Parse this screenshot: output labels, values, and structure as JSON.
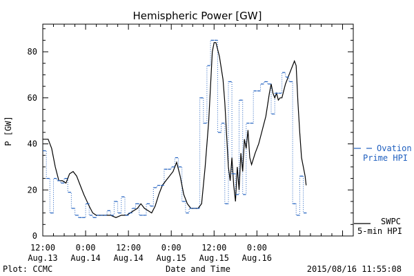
{
  "chart_data": {
    "type": "line",
    "title": "Hemispheric Power [GW]",
    "ylabel": "P [GW]",
    "xlabel": "Date and Time",
    "ylim": [
      0,
      92
    ],
    "y_ticks": [
      0,
      20,
      40,
      60,
      80
    ],
    "x_axis_unit": "hours since 2015/08/13 12:00",
    "xlim": [
      0,
      87
    ],
    "x_ticks": [
      {
        "x": 0,
        "line1": "12:00",
        "line2": "Aug.13"
      },
      {
        "x": 12,
        "line1": "0:00",
        "line2": "Aug.14"
      },
      {
        "x": 24,
        "line1": "12:00",
        "line2": "Aug.14"
      },
      {
        "x": 36,
        "line1": "0:00",
        "line2": "Aug.15"
      },
      {
        "x": 48,
        "line1": "12:00",
        "line2": "Aug.15"
      },
      {
        "x": 60,
        "line1": "0:00",
        "line2": "Aug.16"
      }
    ],
    "series": [
      {
        "name": "SWPC 5-min HPI",
        "color": "#000000",
        "style": "solid",
        "points": [
          [
            0,
            42
          ],
          [
            1.5,
            42
          ],
          [
            2.5,
            38
          ],
          [
            3.5,
            30
          ],
          [
            4.5,
            24
          ],
          [
            5.5,
            24
          ],
          [
            6.5,
            23
          ],
          [
            7.5,
            27
          ],
          [
            8.5,
            28
          ],
          [
            9.5,
            26
          ],
          [
            10.5,
            22
          ],
          [
            11.5,
            18
          ],
          [
            13,
            13
          ],
          [
            14,
            10
          ],
          [
            15,
            9
          ],
          [
            16,
            9
          ],
          [
            17.5,
            9
          ],
          [
            19,
            9
          ],
          [
            20.5,
            8
          ],
          [
            22,
            9
          ],
          [
            23.5,
            9
          ],
          [
            24.5,
            10
          ],
          [
            25.5,
            11
          ],
          [
            26.5,
            12
          ],
          [
            27.5,
            14
          ],
          [
            28.5,
            12
          ],
          [
            29.5,
            11
          ],
          [
            30.5,
            10
          ],
          [
            31.5,
            13
          ],
          [
            32.5,
            18
          ],
          [
            33.5,
            22
          ],
          [
            34.5,
            24
          ],
          [
            35.5,
            26
          ],
          [
            36.5,
            28
          ],
          [
            37.5,
            32
          ],
          [
            38.5,
            26
          ],
          [
            39.5,
            18
          ],
          [
            40.5,
            14
          ],
          [
            41.5,
            12
          ],
          [
            42.5,
            12
          ],
          [
            43.5,
            12
          ],
          [
            44.5,
            14
          ],
          [
            45.5,
            30
          ],
          [
            46.5,
            50
          ],
          [
            47,
            65
          ],
          [
            47.5,
            80
          ],
          [
            48,
            84
          ],
          [
            48.5,
            84
          ],
          [
            49.5,
            78
          ],
          [
            50.5,
            68
          ],
          [
            51,
            58
          ],
          [
            51.5,
            44
          ],
          [
            52,
            30
          ],
          [
            52.5,
            24
          ],
          [
            53,
            34
          ],
          [
            53.5,
            22
          ],
          [
            54,
            15
          ],
          [
            54.5,
            30
          ],
          [
            55,
            20
          ],
          [
            55.5,
            36
          ],
          [
            56,
            28
          ],
          [
            56.5,
            42
          ],
          [
            57,
            38
          ],
          [
            57.5,
            46
          ],
          [
            58,
            34
          ],
          [
            58.5,
            31
          ],
          [
            59.5,
            36
          ],
          [
            60.5,
            40
          ],
          [
            61.5,
            46
          ],
          [
            62.5,
            52
          ],
          [
            63.5,
            62
          ],
          [
            64,
            66
          ],
          [
            64.5,
            62
          ],
          [
            65,
            60
          ],
          [
            65.5,
            62
          ],
          [
            66,
            59
          ],
          [
            66.5,
            60
          ],
          [
            67,
            60
          ],
          [
            67.5,
            63
          ],
          [
            68,
            66
          ],
          [
            68.5,
            68
          ],
          [
            69,
            70
          ],
          [
            69.5,
            72
          ],
          [
            70,
            74
          ],
          [
            70.5,
            76
          ],
          [
            71,
            74
          ],
          [
            71.5,
            58
          ],
          [
            72,
            45
          ],
          [
            72.5,
            34
          ],
          [
            73,
            30
          ],
          [
            73.5,
            26
          ],
          [
            73.8,
            22
          ]
        ]
      },
      {
        "name": "Ovation Prime HPI",
        "color": "#1f5fbf",
        "style": "dotted-step",
        "points": [
          [
            0,
            37
          ],
          [
            1,
            25
          ],
          [
            2,
            10
          ],
          [
            3,
            25
          ],
          [
            4,
            24
          ],
          [
            5,
            23
          ],
          [
            6,
            25
          ],
          [
            7,
            19
          ],
          [
            8,
            12
          ],
          [
            9,
            9
          ],
          [
            10,
            8
          ],
          [
            11,
            8
          ],
          [
            12,
            14
          ],
          [
            13,
            9
          ],
          [
            14,
            8
          ],
          [
            15,
            9
          ],
          [
            16,
            9
          ],
          [
            17,
            9
          ],
          [
            18,
            11
          ],
          [
            19,
            9
          ],
          [
            20,
            15
          ],
          [
            21,
            10
          ],
          [
            22,
            17
          ],
          [
            23,
            9
          ],
          [
            24,
            10
          ],
          [
            25,
            12
          ],
          [
            26,
            14
          ],
          [
            27,
            9
          ],
          [
            28,
            9
          ],
          [
            29,
            14
          ],
          [
            30,
            13
          ],
          [
            31,
            21
          ],
          [
            32,
            22
          ],
          [
            33,
            22
          ],
          [
            34,
            29
          ],
          [
            35,
            29
          ],
          [
            36,
            30
          ],
          [
            37,
            34
          ],
          [
            38,
            30
          ],
          [
            39,
            15
          ],
          [
            40,
            10
          ],
          [
            41,
            12
          ],
          [
            42,
            12
          ],
          [
            43,
            12
          ],
          [
            44,
            60
          ],
          [
            45,
            49
          ],
          [
            46,
            74
          ],
          [
            47,
            85
          ],
          [
            48,
            85
          ],
          [
            49,
            45
          ],
          [
            50,
            49
          ],
          [
            51,
            14
          ],
          [
            52,
            67
          ],
          [
            53,
            27
          ],
          [
            54,
            18
          ],
          [
            55,
            59
          ],
          [
            56,
            18
          ],
          [
            57,
            49
          ],
          [
            58,
            49
          ],
          [
            59,
            63
          ],
          [
            60,
            63
          ],
          [
            61,
            66
          ],
          [
            62,
            67
          ],
          [
            63,
            66
          ],
          [
            64,
            53
          ],
          [
            65,
            62
          ],
          [
            66,
            62
          ],
          [
            67,
            71
          ],
          [
            68,
            69
          ],
          [
            69,
            67
          ],
          [
            70,
            14
          ],
          [
            71,
            9
          ],
          [
            72,
            26
          ],
          [
            73,
            10
          ]
        ]
      }
    ],
    "legend": {
      "position": "right",
      "ovation_line1": "Ovation",
      "ovation_line2": "Prime HPI",
      "swpc_line1": "SWPC",
      "swpc_line2": "5-min HPI"
    },
    "footer": {
      "left": "Plot: CCMC",
      "center": "Date and Time",
      "right": "2015/08/16 11:55:08"
    }
  }
}
